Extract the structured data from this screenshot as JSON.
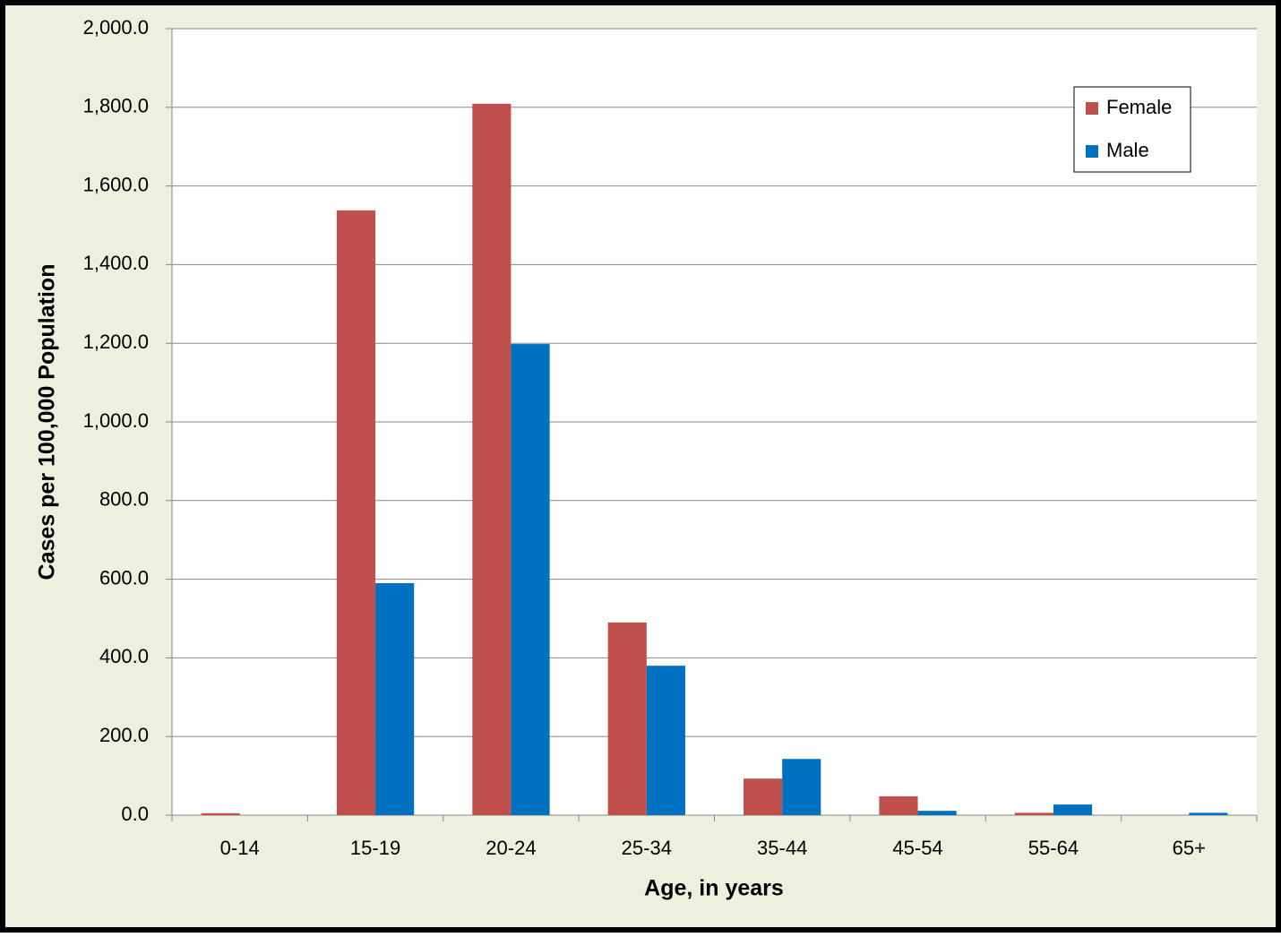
{
  "chart_data": {
    "type": "bar",
    "x_label": "Age, in years",
    "y_label": "Cases per 100,000 Population",
    "categories": [
      "0-14",
      "15-19",
      "20-24",
      "25-34",
      "35-44",
      "45-54",
      "55-64",
      "65+"
    ],
    "series": [
      {
        "name": "Female",
        "color": "#c0504d",
        "values": [
          5,
          1538,
          1809,
          490,
          93,
          48,
          6,
          0
        ]
      },
      {
        "name": "Male",
        "color": "#0070c0",
        "values": [
          0,
          590,
          1198,
          380,
          143,
          11,
          27,
          6
        ]
      }
    ],
    "ylim": [
      0,
      2000
    ],
    "yticks": [
      {
        "value": 0,
        "label": "0.0"
      },
      {
        "value": 200,
        "label": "200.0"
      },
      {
        "value": 400,
        "label": "400.0"
      },
      {
        "value": 600,
        "label": "600.0"
      },
      {
        "value": 800,
        "label": "800.0"
      },
      {
        "value": 1000,
        "label": "1,000.0"
      },
      {
        "value": 1200,
        "label": "1,200.0"
      },
      {
        "value": 1400,
        "label": "1,400.0"
      },
      {
        "value": 1600,
        "label": "1,600.0"
      },
      {
        "value": 1800,
        "label": "1,800.0"
      },
      {
        "value": 2000,
        "label": "2,000.0"
      }
    ],
    "grid": true,
    "legend": "top-right"
  }
}
